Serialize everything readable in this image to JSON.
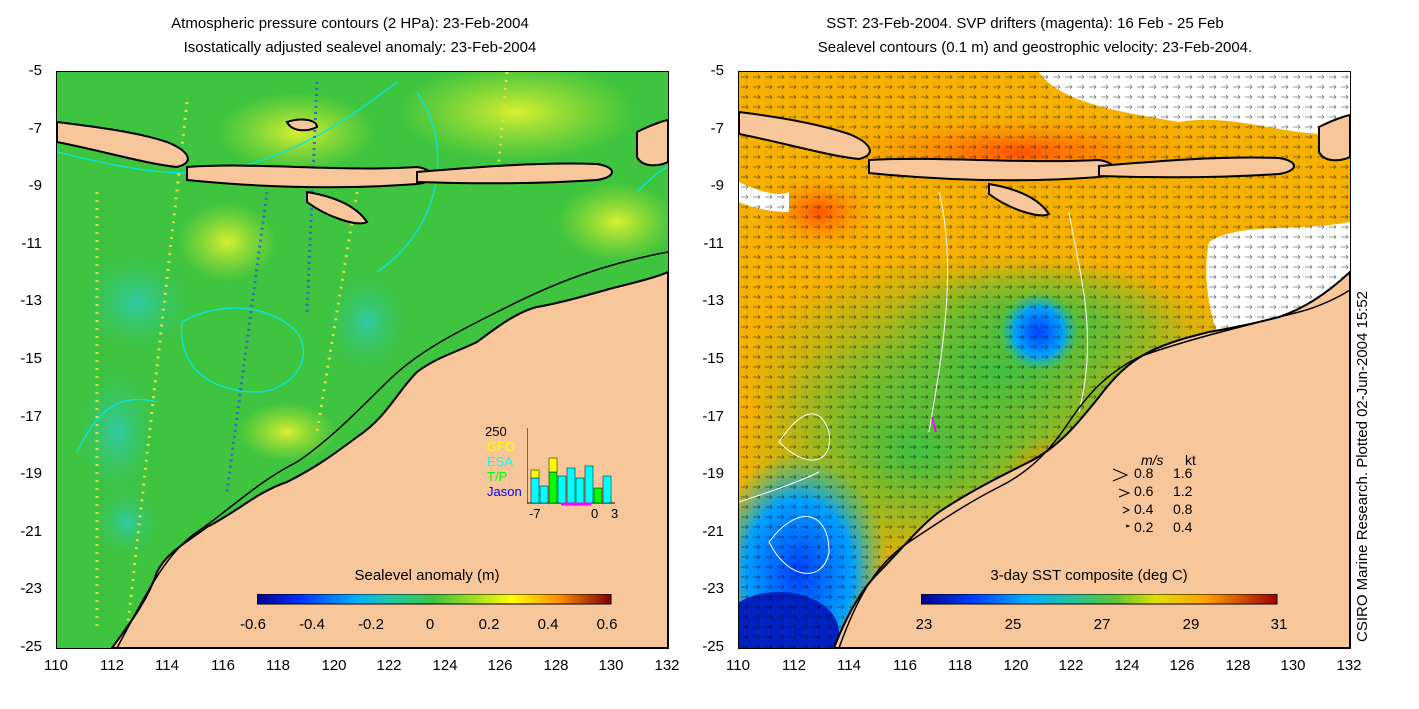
{
  "left_panel": {
    "title_line1": "Atmospheric pressure contours (2 HPa): 23-Feb-2004",
    "title_line2": "Isostatically adjusted sealevel anomaly: 23-Feb-2004",
    "colorbar": {
      "title": "Sealevel anomaly (m)",
      "labels": [
        "-0.6",
        "-0.4",
        "-0.2",
        "0",
        "0.2",
        "0.4",
        "0.6"
      ],
      "range": [
        -0.6,
        0.6
      ]
    },
    "inset": {
      "ymax_label": "250",
      "legend": [
        "GFO",
        "ESA",
        "T/P",
        "Jason"
      ],
      "legend_colors": [
        "#ffff00",
        "#00ffff",
        "#00ff00",
        "#0000ff"
      ],
      "x_labels": [
        "-7",
        "0",
        "3"
      ]
    }
  },
  "right_panel": {
    "title_line1": "SST: 23-Feb-2004. SVP drifters (magenta): 16 Feb - 25 Feb",
    "title_line2": "Sealevel contours (0.1 m) and geostrophic velocity: 23-Feb-2004.",
    "colorbar": {
      "title": "3-day SST composite (deg C)",
      "labels": [
        "23",
        "25",
        "27",
        "29",
        "31"
      ],
      "range": [
        23,
        31
      ]
    },
    "scale": {
      "header_ms": "m/s",
      "header_kt": "kt",
      "rows": [
        {
          "ms": "0.8",
          "kt": "1.6"
        },
        {
          "ms": "0.6",
          "kt": "1.2"
        },
        {
          "ms": "0.4",
          "kt": "0.8"
        },
        {
          "ms": "0.2",
          "kt": "0.4"
        }
      ]
    }
  },
  "axes": {
    "lat_ticks": [
      "-5",
      "-7",
      "-9",
      "-11",
      "-13",
      "-15",
      "-17",
      "-19",
      "-21",
      "-23",
      "-25"
    ],
    "lon_ticks": [
      "110",
      "112",
      "114",
      "116",
      "118",
      "120",
      "122",
      "124",
      "126",
      "128",
      "130",
      "132"
    ]
  },
  "credit": "CSIRO Marine Research. Plotted 02-Jun-2004 15:52",
  "colors": {
    "land": "#f7c69a",
    "ocean_green": "#3ec43e",
    "ssh_colormap": [
      "#00008f",
      "#0050ff",
      "#00c0ff",
      "#20c8a0",
      "#3ec43e",
      "#a0e020",
      "#ffff00",
      "#ffa000",
      "#ff4000",
      "#800000"
    ],
    "sst_colormap": [
      "#00008f",
      "#0040ff",
      "#00a0ff",
      "#20c0a0",
      "#40c040",
      "#a0d820",
      "#ffe000",
      "#ffa000",
      "#ff5000",
      "#a00000"
    ]
  }
}
